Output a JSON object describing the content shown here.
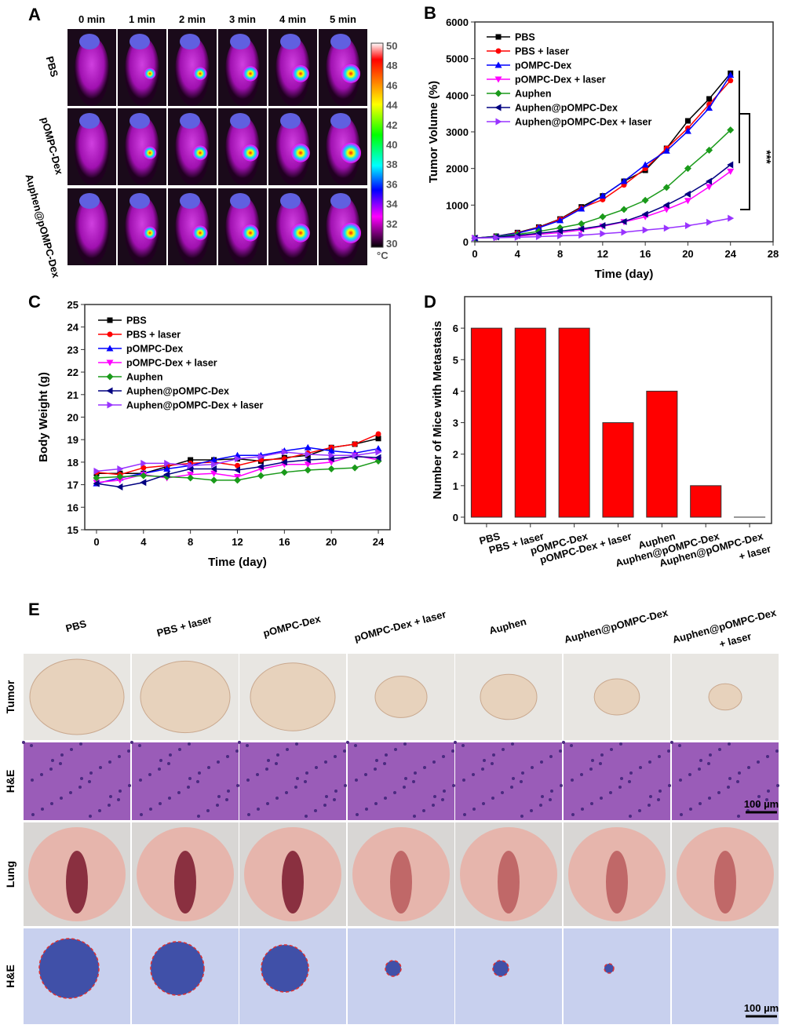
{
  "series_colors": [
    "#000000",
    "#ff0000",
    "#0000ff",
    "#ff00ff",
    "#1a9a1a",
    "#000080",
    "#9933ff"
  ],
  "series_markers": [
    "square",
    "circle",
    "triangle-up",
    "triangle-down",
    "diamond",
    "triangle-left",
    "triangle-right"
  ],
  "panelA": {
    "label": "A",
    "columns": [
      "0 min",
      "1 min",
      "2 min",
      "3 min",
      "4 min",
      "5 min"
    ],
    "rows": [
      "PBS",
      "pOMPC-Dex",
      "Auphen@pOMPC-Dex"
    ],
    "colorbar_ticks": [
      "50",
      "48",
      "46",
      "44",
      "42",
      "40",
      "38",
      "36",
      "34",
      "32",
      "30"
    ],
    "colorbar_unit": "°C"
  },
  "chart_data": [
    {
      "panel": "B",
      "type": "line",
      "xlabel": "Time (day)",
      "ylabel": "Tumor Volume (%)",
      "xlim": [
        0,
        28
      ],
      "ylim": [
        0,
        6000
      ],
      "xticks": [
        0,
        4,
        8,
        12,
        16,
        20,
        24,
        28
      ],
      "yticks": [
        0,
        1000,
        2000,
        3000,
        4000,
        5000,
        6000
      ],
      "x": [
        0,
        2,
        4,
        6,
        8,
        10,
        12,
        14,
        16,
        18,
        20,
        22,
        24
      ],
      "legend": "top-left",
      "annotation": "***",
      "series": [
        {
          "name": "PBS",
          "values": [
            100,
            150,
            250,
            400,
            620,
            950,
            1250,
            1650,
            1950,
            2550,
            3300,
            3900,
            4600
          ]
        },
        {
          "name": "PBS + laser",
          "values": [
            100,
            140,
            240,
            390,
            610,
            920,
            1150,
            1550,
            2000,
            2550,
            3100,
            3750,
            4400
          ]
        },
        {
          "name": "pOMPC-Dex",
          "values": [
            100,
            145,
            230,
            380,
            580,
            900,
            1250,
            1650,
            2100,
            2480,
            3020,
            3650,
            4550
          ]
        },
        {
          "name": "pOMPC-Dex + laser",
          "values": [
            100,
            120,
            150,
            200,
            250,
            320,
            420,
            540,
            680,
            880,
            1120,
            1500,
            1920
          ]
        },
        {
          "name": "Auphen",
          "values": [
            100,
            140,
            200,
            280,
            380,
            490,
            680,
            880,
            1130,
            1480,
            2000,
            2500,
            3050
          ]
        },
        {
          "name": "Auphen@pOMPC-Dex",
          "values": [
            100,
            130,
            170,
            230,
            290,
            350,
            440,
            550,
            750,
            1000,
            1300,
            1650,
            2100
          ]
        },
        {
          "name": "Auphen@pOMPC-Dex + laser",
          "values": [
            100,
            110,
            120,
            140,
            160,
            180,
            220,
            260,
            320,
            370,
            440,
            530,
            640
          ]
        }
      ]
    },
    {
      "panel": "C",
      "type": "line",
      "xlabel": "Time (day)",
      "ylabel": "Body Weight (g)",
      "xlim": [
        -1,
        25
      ],
      "ylim": [
        15,
        25
      ],
      "xticks": [
        0,
        4,
        8,
        12,
        16,
        20,
        24
      ],
      "yticks": [
        15,
        16,
        17,
        18,
        19,
        20,
        21,
        22,
        23,
        24,
        25
      ],
      "x": [
        0,
        2,
        4,
        6,
        8,
        10,
        12,
        14,
        16,
        18,
        20,
        22,
        24
      ],
      "legend": "top-left",
      "series": [
        {
          "name": "PBS",
          "values": [
            17.5,
            17.5,
            17.5,
            17.8,
            18.1,
            18.1,
            18.15,
            18.05,
            18.2,
            18.3,
            18.65,
            18.8,
            19.05
          ]
        },
        {
          "name": "PBS + laser",
          "values": [
            17.55,
            17.45,
            17.75,
            17.85,
            17.95,
            18.0,
            17.85,
            18.1,
            18.15,
            18.4,
            18.65,
            18.8,
            19.25
          ]
        },
        {
          "name": "pOMPC-Dex",
          "values": [
            17.05,
            17.3,
            17.5,
            17.7,
            17.85,
            18.1,
            18.3,
            18.3,
            18.5,
            18.65,
            18.5,
            18.4,
            18.6
          ]
        },
        {
          "name": "pOMPC-Dex + laser",
          "values": [
            17.1,
            17.2,
            17.45,
            17.3,
            17.45,
            17.5,
            17.35,
            17.7,
            17.9,
            17.9,
            18.0,
            18.3,
            18.1
          ]
        },
        {
          "name": "Auphen",
          "values": [
            17.3,
            17.35,
            17.4,
            17.35,
            17.3,
            17.2,
            17.2,
            17.4,
            17.55,
            17.65,
            17.7,
            17.75,
            18.05
          ]
        },
        {
          "name": "Auphen@pOMPC-Dex",
          "values": [
            17.05,
            16.9,
            17.1,
            17.45,
            17.7,
            17.7,
            17.65,
            17.8,
            18.0,
            18.1,
            18.15,
            18.25,
            18.2
          ]
        },
        {
          "name": "Auphen@pOMPC-Dex + laser",
          "values": [
            17.6,
            17.7,
            17.95,
            17.95,
            17.85,
            17.9,
            18.15,
            18.25,
            18.45,
            18.35,
            18.3,
            18.3,
            18.45
          ]
        }
      ]
    },
    {
      "panel": "D",
      "type": "bar",
      "ylabel": "Number of Mice with Metastasis",
      "ylim": [
        -0.2,
        7
      ],
      "yticks": [
        0,
        1,
        2,
        3,
        4,
        5,
        6
      ],
      "categories": [
        "PBS",
        "PBS + laser",
        "pOMPC-Dex",
        "pOMPC-Dex + laser",
        "Auphen",
        "Auphen@pOMPC-Dex",
        "Auphen@pOMPC-Dex\n+ laser"
      ],
      "values": [
        6,
        6,
        6,
        3,
        4,
        1,
        0
      ],
      "bar_color": "#ff0000"
    }
  ],
  "panelE": {
    "label": "E",
    "columns": [
      "PBS",
      "PBS + laser",
      "pOMPC-Dex",
      "pOMPC-Dex + laser",
      "Auphen",
      "Auphen@pOMPC-Dex",
      "Auphen@pOMPC-Dex\n+ laser"
    ],
    "rows": [
      "Tumor",
      "H&E",
      "Lung",
      "H&E"
    ],
    "scale_bar": "100 µm",
    "tumor_relative_size": [
      1.0,
      0.95,
      0.9,
      0.55,
      0.6,
      0.48,
      0.35
    ]
  }
}
